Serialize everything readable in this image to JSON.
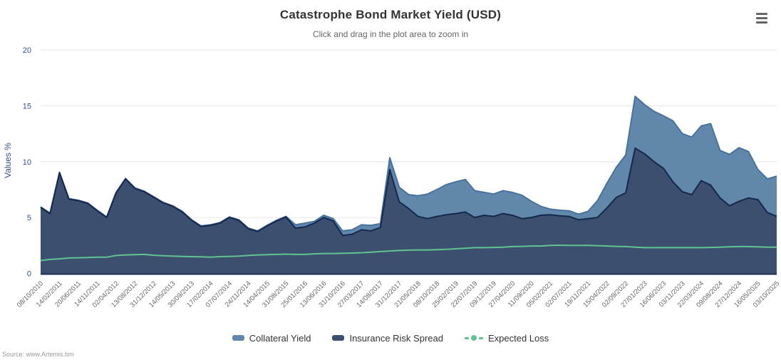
{
  "header": {
    "title": "Catastrophe Bond Market Yield (USD)",
    "subtitle": "Click and drag in the plot area to zoom in"
  },
  "menu": {
    "icon": "hamburger-icon",
    "tooltip": "Chart context menu"
  },
  "source": {
    "text": "Source: www.Artemis.bm"
  },
  "legend": {
    "items": [
      "Collateral Yield",
      "Insurance Risk Spread",
      "Expected Loss"
    ]
  },
  "chart_data": {
    "type": "area",
    "stacked": true,
    "title": "Catastrophe Bond Market Yield (USD)",
    "subtitle": "Click and drag in the plot area to zoom in",
    "xlabel": "",
    "ylabel": "Values %",
    "ylim": [
      0,
      20
    ],
    "yticks": [
      0,
      5,
      10,
      15,
      20
    ],
    "grid": true,
    "legend_position": "bottom",
    "samples_per_interval": 2,
    "categories": [
      "08/10/2010",
      "14/02/2011",
      "20/06/2011",
      "14/11/2011",
      "02/04/2012",
      "13/08/2012",
      "31/12/2012",
      "14/05/2013",
      "30/09/2013",
      "17/02/2014",
      "07/07/2014",
      "24/11/2014",
      "14/04/2015",
      "31/08/2015",
      "25/01/2016",
      "13/06/2016",
      "31/10/2016",
      "27/03/2017",
      "14/08/2017",
      "31/12/2017",
      "21/05/2018",
      "08/10/2018",
      "25/02/2019",
      "22/07/2019",
      "09/12/2019",
      "27/04/2020",
      "11/09/2020",
      "05/02/2021",
      "02/07/2021",
      "19/11/2021",
      "15/04/2022",
      "02/09/2022",
      "27/01/2023",
      "16/06/2023",
      "03/11/2023",
      "22/03/2024",
      "09/08/2024",
      "27/12/2024",
      "16/05/2025",
      "03/10/2025"
    ],
    "series": [
      {
        "name": "Collateral Yield",
        "type": "area",
        "stacking": "stacked-on-insurance-risk-spread",
        "color": "#6187ab",
        "line_color": "#49739f",
        "values": [
          0.05,
          0.05,
          0.05,
          0.05,
          0.05,
          0.05,
          0.05,
          0.05,
          0.05,
          0.05,
          0.05,
          0.05,
          0.05,
          0.05,
          0.05,
          0.05,
          0.05,
          0.05,
          0.05,
          0.05,
          0.05,
          0.05,
          0.05,
          0.05,
          0.05,
          0.05,
          0.05,
          0.3,
          0.35,
          0.15,
          0.2,
          0.2,
          0.4,
          0.4,
          0.45,
          0.5,
          0.35,
          1.05,
          1.3,
          1.25,
          1.85,
          2.2,
          2.4,
          2.7,
          2.85,
          2.9,
          2.4,
          2.05,
          2.0,
          2.05,
          2.05,
          2.1,
          1.45,
          0.8,
          0.5,
          0.5,
          0.5,
          0.5,
          0.65,
          1.5,
          2.2,
          2.7,
          3.4,
          4.65,
          4.4,
          4.5,
          4.7,
          5.45,
          5.2,
          5.15,
          4.9,
          5.5,
          4.25,
          4.6,
          4.8,
          4.15,
          2.7,
          3.0,
          3.6
        ]
      },
      {
        "name": "Insurance Risk Spread",
        "type": "area",
        "stacking": "base",
        "color": "#3d4f6e",
        "line_color": "#14294e",
        "values": [
          5.9,
          5.35,
          9.0,
          6.65,
          6.5,
          6.25,
          5.6,
          5.0,
          7.2,
          8.45,
          7.6,
          7.3,
          6.8,
          6.3,
          6.0,
          5.5,
          4.75,
          4.2,
          4.3,
          4.5,
          5.0,
          4.75,
          4.0,
          3.75,
          4.25,
          4.7,
          5.05,
          4.05,
          4.15,
          4.5,
          5.0,
          4.7,
          3.4,
          3.5,
          3.9,
          3.8,
          4.1,
          9.3,
          6.4,
          5.8,
          5.1,
          4.9,
          5.1,
          5.25,
          5.35,
          5.5,
          5.0,
          5.2,
          5.1,
          5.35,
          5.2,
          4.9,
          5.0,
          5.2,
          5.25,
          5.15,
          5.1,
          4.8,
          4.9,
          5.0,
          5.85,
          6.8,
          7.2,
          11.2,
          10.7,
          10.0,
          9.4,
          8.2,
          7.3,
          7.05,
          8.3,
          7.9,
          6.75,
          6.05,
          6.45,
          6.75,
          6.6,
          5.45,
          5.1
        ]
      },
      {
        "name": "Expected Loss",
        "type": "line",
        "color": "#5fc390",
        "values": [
          1.15,
          1.25,
          1.3,
          1.38,
          1.4,
          1.42,
          1.45,
          1.45,
          1.6,
          1.65,
          1.68,
          1.7,
          1.62,
          1.58,
          1.55,
          1.52,
          1.5,
          1.48,
          1.45,
          1.5,
          1.52,
          1.55,
          1.6,
          1.65,
          1.68,
          1.7,
          1.72,
          1.7,
          1.7,
          1.75,
          1.78,
          1.78,
          1.8,
          1.82,
          1.85,
          1.9,
          1.95,
          2.0,
          2.05,
          2.08,
          2.1,
          2.1,
          2.12,
          2.15,
          2.2,
          2.25,
          2.3,
          2.3,
          2.32,
          2.35,
          2.4,
          2.42,
          2.45,
          2.45,
          2.5,
          2.52,
          2.5,
          2.5,
          2.5,
          2.48,
          2.45,
          2.42,
          2.4,
          2.35,
          2.3,
          2.3,
          2.3,
          2.3,
          2.3,
          2.3,
          2.3,
          2.32,
          2.35,
          2.38,
          2.4,
          2.4,
          2.38,
          2.35,
          2.35
        ]
      }
    ],
    "axis_style": {
      "y_label_color": "#35508f",
      "x_label_color": "#666666",
      "grid_color": "#e6e6e6",
      "axis_line_color": "#1b3054"
    }
  }
}
